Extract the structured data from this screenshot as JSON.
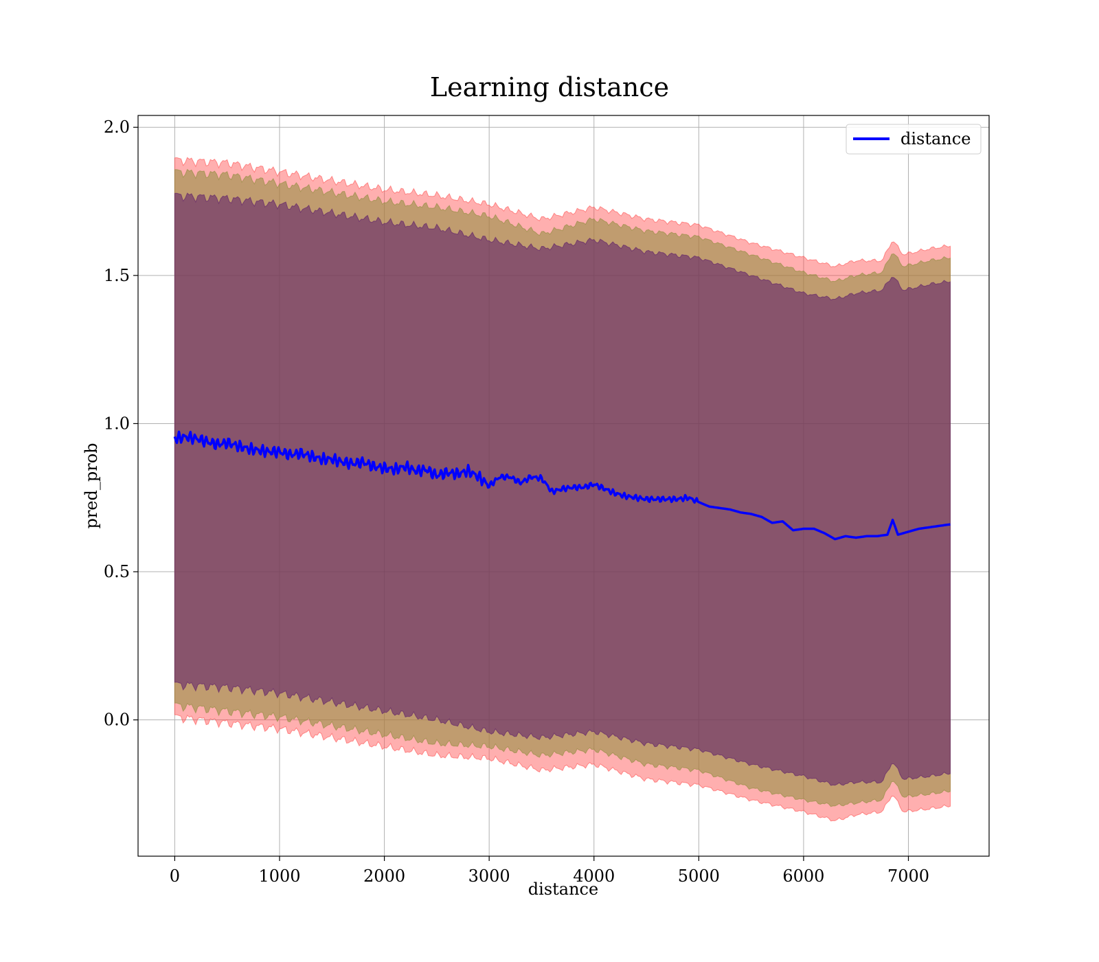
{
  "chart_data": {
    "type": "line",
    "title": "Learning distance",
    "xlabel": "distance",
    "ylabel": "pred_prob",
    "xlim": [
      -350,
      7770
    ],
    "ylim": [
      -0.46,
      2.04
    ],
    "xticks": [
      0,
      1000,
      2000,
      3000,
      4000,
      5000,
      6000,
      7000
    ],
    "yticks": [
      0.0,
      0.5,
      1.0,
      1.5,
      2.0
    ],
    "xtick_labels": [
      "0",
      "1000",
      "2000",
      "3000",
      "4000",
      "5000",
      "6000",
      "7000"
    ],
    "ytick_labels": [
      "0.0",
      "0.5",
      "1.0",
      "1.5",
      "2.0"
    ],
    "grid": true,
    "legend": {
      "placement": "top-right",
      "entries": [
        "distance"
      ]
    },
    "colors": {
      "line": "#0000ff",
      "outer_band": "#ff4d4d",
      "mid_band": "#8c8c3a",
      "inner_band": "#5a1a6a"
    },
    "series": [
      {
        "name": "distance",
        "x": [
          0,
          100,
          200,
          300,
          400,
          500,
          600,
          700,
          800,
          900,
          1000,
          1100,
          1200,
          1300,
          1400,
          1500,
          1600,
          1700,
          1800,
          1900,
          2000,
          2100,
          2200,
          2300,
          2400,
          2500,
          2600,
          2700,
          2800,
          2900,
          3000,
          3100,
          3200,
          3300,
          3400,
          3500,
          3600,
          3700,
          3800,
          3900,
          4000,
          4100,
          4200,
          4300,
          4400,
          4500,
          4600,
          4700,
          4800,
          4900,
          5000,
          5100,
          5200,
          5300,
          5400,
          5500,
          5600,
          5700,
          5800,
          5900,
          6000,
          6100,
          6200,
          6300,
          6400,
          6500,
          6600,
          6700,
          6800,
          6850,
          6900,
          7000,
          7100,
          7200,
          7300,
          7400
        ],
        "y": [
          0.95,
          0.955,
          0.95,
          0.94,
          0.93,
          0.935,
          0.925,
          0.915,
          0.91,
          0.905,
          0.905,
          0.895,
          0.9,
          0.89,
          0.88,
          0.88,
          0.87,
          0.865,
          0.87,
          0.855,
          0.85,
          0.845,
          0.855,
          0.84,
          0.845,
          0.825,
          0.835,
          0.83,
          0.84,
          0.82,
          0.79,
          0.82,
          0.82,
          0.8,
          0.82,
          0.815,
          0.77,
          0.78,
          0.785,
          0.785,
          0.795,
          0.78,
          0.765,
          0.755,
          0.75,
          0.745,
          0.745,
          0.745,
          0.745,
          0.75,
          0.735,
          0.72,
          0.715,
          0.71,
          0.7,
          0.695,
          0.685,
          0.665,
          0.67,
          0.64,
          0.645,
          0.645,
          0.63,
          0.61,
          0.62,
          0.615,
          0.62,
          0.62,
          0.625,
          0.675,
          0.625,
          0.635,
          0.645,
          0.65,
          0.655,
          0.66
        ]
      }
    ],
    "bands": [
      {
        "role": "outer",
        "x": [
          0,
          500,
          1000,
          1500,
          2000,
          2500,
          3000,
          3500,
          4000,
          4500,
          5000,
          5500,
          6000,
          6300,
          6500,
          6750,
          6850,
          6950,
          7200,
          7400
        ],
        "upper": [
          1.89,
          1.88,
          1.85,
          1.82,
          1.79,
          1.77,
          1.74,
          1.69,
          1.73,
          1.69,
          1.67,
          1.61,
          1.56,
          1.53,
          1.55,
          1.55,
          1.62,
          1.57,
          1.59,
          1.6
        ],
        "lower": [
          0.01,
          -0.01,
          -0.03,
          -0.06,
          -0.09,
          -0.12,
          -0.13,
          -0.17,
          -0.15,
          -0.2,
          -0.22,
          -0.27,
          -0.31,
          -0.34,
          -0.32,
          -0.31,
          -0.25,
          -0.31,
          -0.3,
          -0.29
        ]
      },
      {
        "role": "middle",
        "x": [
          0,
          500,
          1000,
          1500,
          2000,
          2500,
          3000,
          3500,
          4000,
          4500,
          5000,
          5500,
          6000,
          6300,
          6500,
          6750,
          6850,
          6950,
          7200,
          7400
        ],
        "upper": [
          1.85,
          1.84,
          1.81,
          1.78,
          1.75,
          1.73,
          1.7,
          1.64,
          1.69,
          1.65,
          1.63,
          1.57,
          1.51,
          1.48,
          1.5,
          1.51,
          1.58,
          1.53,
          1.55,
          1.56
        ],
        "lower": [
          0.05,
          0.03,
          0.01,
          -0.02,
          -0.05,
          -0.08,
          -0.09,
          -0.12,
          -0.1,
          -0.15,
          -0.17,
          -0.23,
          -0.27,
          -0.29,
          -0.28,
          -0.27,
          -0.2,
          -0.26,
          -0.25,
          -0.24
        ]
      },
      {
        "role": "inner",
        "x": [
          0,
          500,
          1000,
          1500,
          2000,
          2500,
          3000,
          3500,
          4000,
          4500,
          5000,
          5500,
          6000,
          6300,
          6500,
          6750,
          6850,
          6950,
          7200,
          7400
        ],
        "upper": [
          1.77,
          1.76,
          1.74,
          1.71,
          1.68,
          1.66,
          1.62,
          1.59,
          1.62,
          1.58,
          1.56,
          1.5,
          1.44,
          1.42,
          1.44,
          1.45,
          1.5,
          1.45,
          1.47,
          1.48
        ],
        "lower": [
          0.12,
          0.11,
          0.09,
          0.06,
          0.03,
          0.0,
          -0.04,
          -0.06,
          -0.04,
          -0.08,
          -0.1,
          -0.15,
          -0.19,
          -0.22,
          -0.21,
          -0.21,
          -0.14,
          -0.2,
          -0.19,
          -0.18
        ]
      }
    ]
  }
}
